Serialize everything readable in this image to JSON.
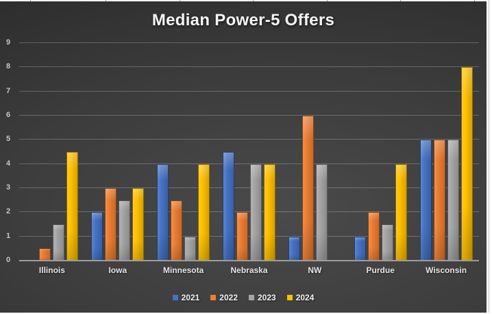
{
  "chart_data": {
    "type": "bar",
    "title": "Median Power-5 Offers",
    "categories": [
      "Illinois",
      "Iowa",
      "Minnesota",
      "Nebraska",
      "NW",
      "Purdue",
      "Wisconsin"
    ],
    "series": [
      {
        "name": "2021",
        "color": "#4472C4",
        "values": [
          0,
          2,
          4,
          4.5,
          1,
          1,
          5
        ]
      },
      {
        "name": "2022",
        "color": "#ED7D31",
        "values": [
          0.5,
          3,
          2.5,
          2,
          6,
          2,
          5
        ]
      },
      {
        "name": "2023",
        "color": "#A5A5A5",
        "values": [
          1.5,
          2.5,
          1,
          4,
          4,
          1.5,
          5
        ]
      },
      {
        "name": "2024",
        "color": "#FFC000",
        "values": [
          4.5,
          3,
          4,
          4,
          0,
          4,
          8
        ]
      }
    ],
    "xlabel": "",
    "ylabel": "",
    "ylim": [
      0,
      9
    ],
    "yticks": [
      0,
      1,
      2,
      3,
      4,
      5,
      6,
      7,
      8,
      9
    ],
    "grid": true,
    "legend_position": "bottom",
    "theme": {
      "background": "dark-gray-gradient",
      "title_color": "#f4f4f4",
      "axis_label_color": "#c6c6c6",
      "category_label_color": "#e3e3e3"
    }
  }
}
